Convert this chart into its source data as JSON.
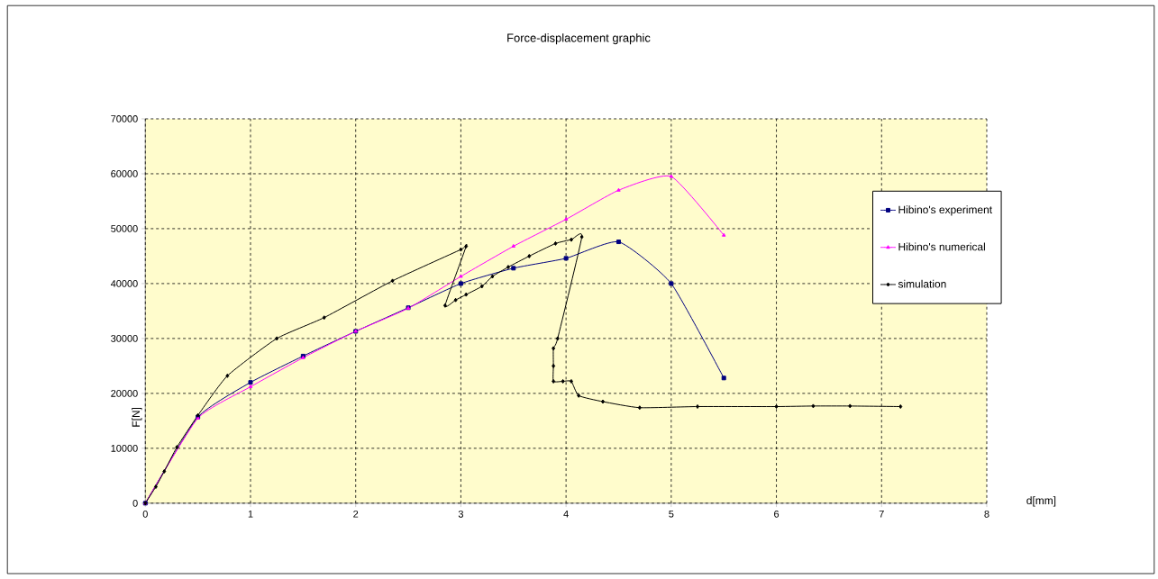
{
  "chart_data": {
    "type": "line",
    "title": "Force-displacement graphic",
    "xlabel": "d[mm]",
    "ylabel": "F[N]",
    "xlim": [
      0,
      8
    ],
    "xticks": [
      0,
      1,
      2,
      3,
      4,
      5,
      6,
      7,
      8
    ],
    "ylim": [
      0,
      70000
    ],
    "yticks": [
      0,
      10000,
      20000,
      30000,
      40000,
      50000,
      60000,
      70000
    ],
    "grid": true,
    "legend": "right",
    "line_style": "solid",
    "series": [
      {
        "name": "Hibino's experiment",
        "color": "#000080",
        "marker": "square",
        "x": [
          0,
          0.5,
          1,
          1.5,
          2,
          2.5,
          3,
          3.5,
          4,
          4.5,
          5,
          5.5
        ],
        "values": [
          0,
          15700,
          22000,
          26800,
          31300,
          35600,
          40000,
          42800,
          44600,
          47600,
          40000,
          22800
        ]
      },
      {
        "name": "Hibino's numerical",
        "color": "#ff00ff",
        "marker": "triangle",
        "x": [
          0,
          0.5,
          1,
          1.5,
          2,
          2.5,
          3,
          3.5,
          4,
          4.5,
          5,
          5.5
        ],
        "values": [
          0,
          15500,
          21200,
          26500,
          31300,
          35500,
          41300,
          46800,
          51700,
          57000,
          59500,
          48800
        ]
      },
      {
        "name": "simulation",
        "color": "#000000",
        "marker": "diamond",
        "x": [
          0,
          0.1,
          0.18,
          0.3,
          0.5,
          0.78,
          1.25,
          1.7,
          2.35,
          3.0,
          3.05,
          2.85,
          2.95,
          3.05,
          3.2,
          3.3,
          3.45,
          3.65,
          3.9,
          4.05,
          4.15,
          3.92,
          3.88,
          3.88,
          3.88,
          3.97,
          4.05,
          4.12,
          4.35,
          4.7,
          5.25,
          6,
          6.35,
          6.7,
          7.18
        ],
        "values": [
          0,
          3000,
          5800,
          10200,
          16000,
          23200,
          30000,
          33800,
          40500,
          46200,
          46800,
          36000,
          37000,
          38000,
          39500,
          41300,
          43000,
          45000,
          47300,
          48000,
          48500,
          30000,
          28200,
          25000,
          22200,
          22200,
          22200,
          19600,
          18500,
          17400,
          17600,
          17600,
          17700,
          17700,
          17600
        ]
      }
    ]
  }
}
